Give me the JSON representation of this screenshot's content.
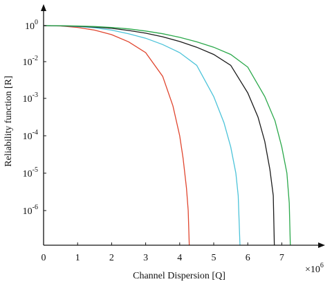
{
  "chart_data": {
    "type": "line",
    "title": "",
    "xlabel": "Channel Dispersion [Q]",
    "ylabel": "Reliability function [R]",
    "x_multiplier_label": "×10",
    "x_multiplier_exponent": "6",
    "x_scale": 1000000,
    "xlim": [
      0,
      8
    ],
    "x_ticks": [
      0,
      1,
      2,
      3,
      4,
      5,
      6,
      7
    ],
    "y_scale": "log",
    "y_ticks": [
      {
        "base": "10",
        "exp": "0"
      },
      {
        "base": "10",
        "exp": "-2"
      },
      {
        "base": "10",
        "exp": "-3"
      },
      {
        "base": "10",
        "exp": "-4"
      },
      {
        "base": "10",
        "exp": "-5"
      },
      {
        "base": "10",
        "exp": "-6"
      }
    ],
    "grid": false,
    "series": [
      {
        "color": "#e0452e",
        "x": [
          0,
          0.5,
          1,
          1.5,
          2,
          2.5,
          3,
          3.5,
          3.8,
          4.0,
          4.1,
          4.2,
          4.25,
          4.28
        ],
        "y": [
          0,
          -0.02,
          -0.1,
          -0.25,
          -0.5,
          -0.9,
          -1.5,
          -2.4,
          -3.2,
          -4.0,
          -4.6,
          -5.4,
          -6.0,
          -6.9
        ]
      },
      {
        "color": "#4cc3d9",
        "x": [
          0,
          0.5,
          1,
          1.5,
          2,
          2.5,
          3,
          3.5,
          4,
          4.5,
          5,
          5.3,
          5.5,
          5.65,
          5.72,
          5.77
        ],
        "y": [
          0,
          -0.01,
          -0.05,
          -0.12,
          -0.25,
          -0.45,
          -0.7,
          -1.05,
          -1.5,
          -2.1,
          -2.95,
          -3.65,
          -4.3,
          -5.0,
          -5.6,
          -6.9
        ]
      },
      {
        "color": "#1a1a1a",
        "x": [
          0,
          0.5,
          1,
          1.5,
          2,
          2.5,
          3,
          3.5,
          4,
          4.5,
          5,
          5.5,
          6,
          6.3,
          6.5,
          6.65,
          6.75,
          6.78
        ],
        "y": [
          0,
          -0.01,
          -0.03,
          -0.08,
          -0.15,
          -0.27,
          -0.42,
          -0.62,
          -0.88,
          -1.2,
          -1.6,
          -2.1,
          -2.85,
          -3.5,
          -4.15,
          -4.9,
          -5.6,
          -6.9
        ]
      },
      {
        "color": "#2aa84a",
        "x": [
          0,
          0.5,
          1,
          1.5,
          2,
          2.5,
          3,
          3.5,
          4,
          4.5,
          5,
          5.5,
          6,
          6.5,
          6.8,
          7.0,
          7.15,
          7.22,
          7.25
        ],
        "y": [
          0,
          -0.005,
          -0.02,
          -0.05,
          -0.1,
          -0.18,
          -0.3,
          -0.45,
          -0.65,
          -0.9,
          -1.2,
          -1.6,
          -2.15,
          -2.95,
          -3.6,
          -4.3,
          -5.0,
          -5.8,
          -6.9
        ]
      }
    ]
  }
}
